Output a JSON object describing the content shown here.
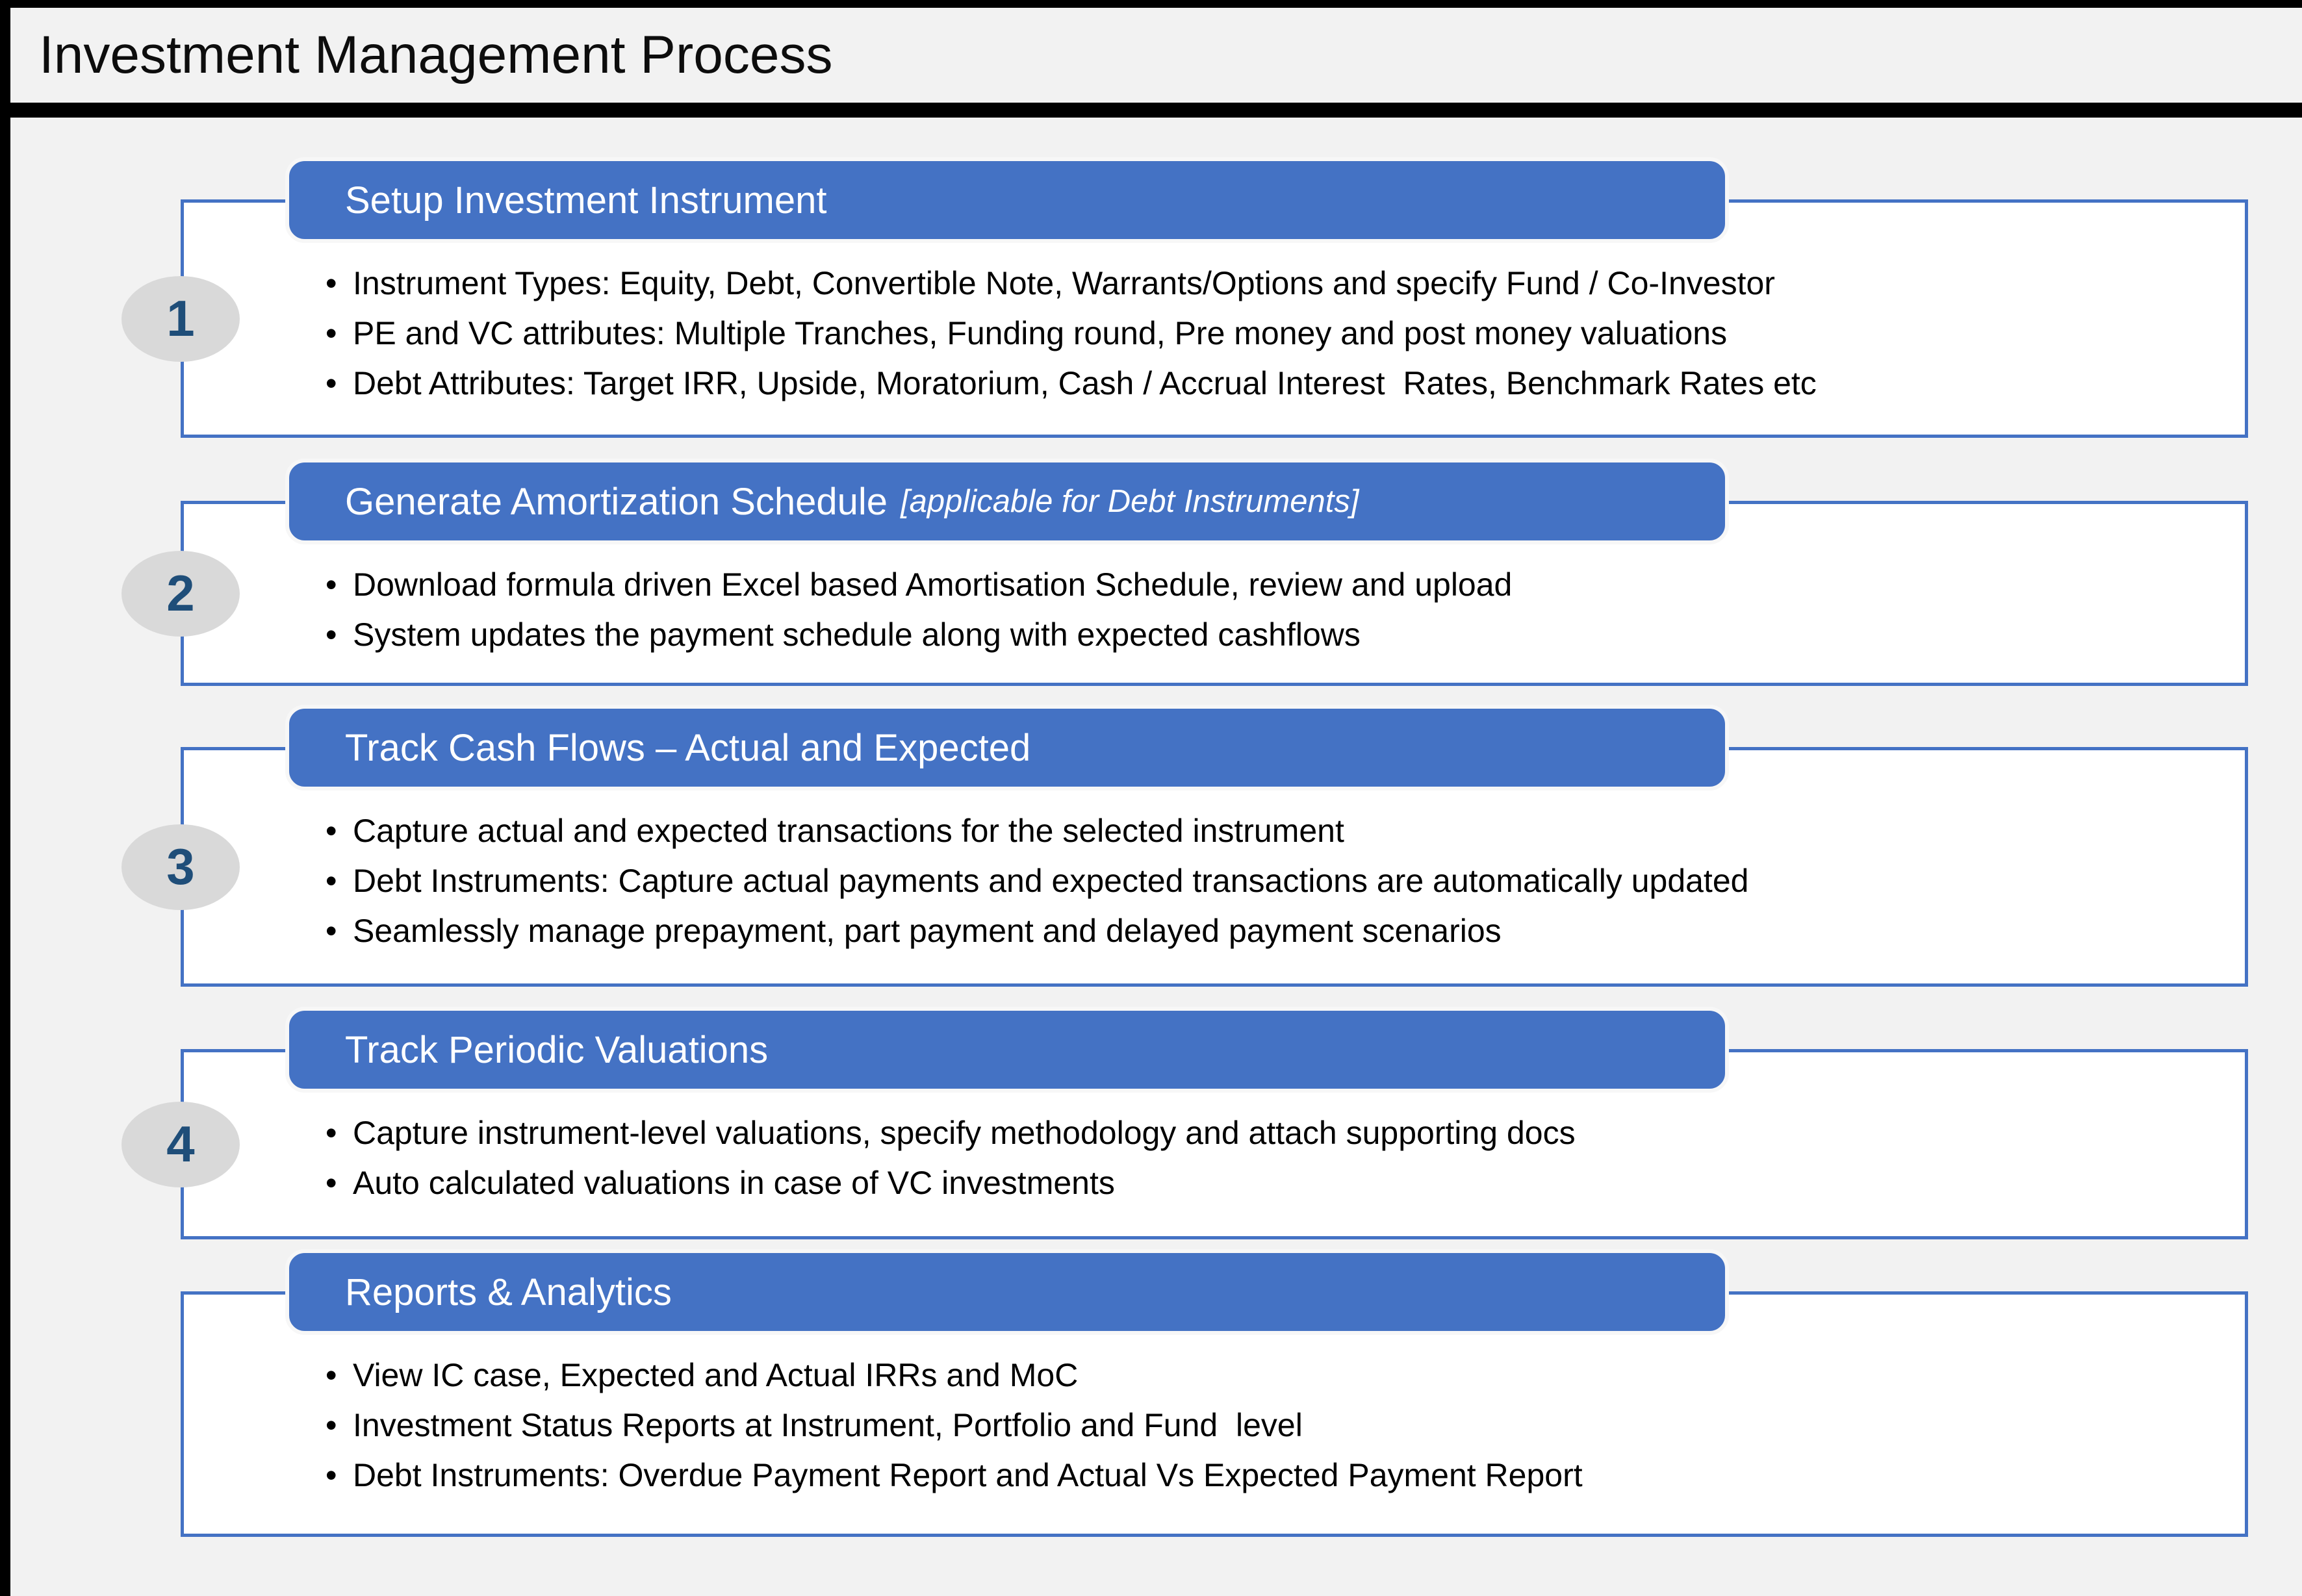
{
  "title": "Investment Management Process",
  "colors": {
    "accent": "#4472C4",
    "page_bg": "#F2F2F2",
    "card_bg": "#FFFFFF",
    "frame": "#000000",
    "header_text": "#FFFFFF",
    "badge_bg": "#D9D9D9",
    "badge_text": "#1F4E79",
    "bullet_text": "#000000"
  },
  "sections": [
    {
      "number": "1",
      "title": "Setup Investment Instrument",
      "note": "",
      "bullets": [
        "Instrument Types: Equity, Debt, Convertible Note, Warrants/Options and specify Fund / Co-Investor",
        "PE and VC attributes: Multiple Tranches, Funding round, Pre money and post money valuations",
        "Debt Attributes: Target IRR, Upside, Moratorium, Cash / Accrual Interest  Rates, Benchmark Rates etc"
      ]
    },
    {
      "number": "2",
      "title": "Generate Amortization Schedule",
      "note": "[applicable for Debt Instruments]",
      "bullets": [
        "Download formula driven Excel based Amortisation Schedule, review and upload",
        "System updates the payment schedule along with expected cashflows"
      ]
    },
    {
      "number": "3",
      "title": "Track Cash Flows – Actual and Expected",
      "note": "",
      "bullets": [
        "Capture actual and expected transactions for the selected instrument",
        "Debt Instruments: Capture actual payments and expected transactions are automatically updated",
        "Seamlessly manage prepayment, part payment and delayed payment scenarios"
      ]
    },
    {
      "number": "4",
      "title": "Track Periodic Valuations",
      "note": "",
      "bullets": [
        "Capture instrument-level valuations, specify methodology and attach supporting docs",
        "Auto calculated valuations in case of VC investments"
      ]
    },
    {
      "number": "",
      "title": "Reports & Analytics",
      "note": "",
      "bullets": [
        "View IC case, Expected and Actual IRRs and MoC",
        "Investment Status Reports at Instrument, Portfolio and Fund  level",
        "Debt Instruments: Overdue Payment Report and Actual Vs Expected Payment Report"
      ]
    }
  ]
}
